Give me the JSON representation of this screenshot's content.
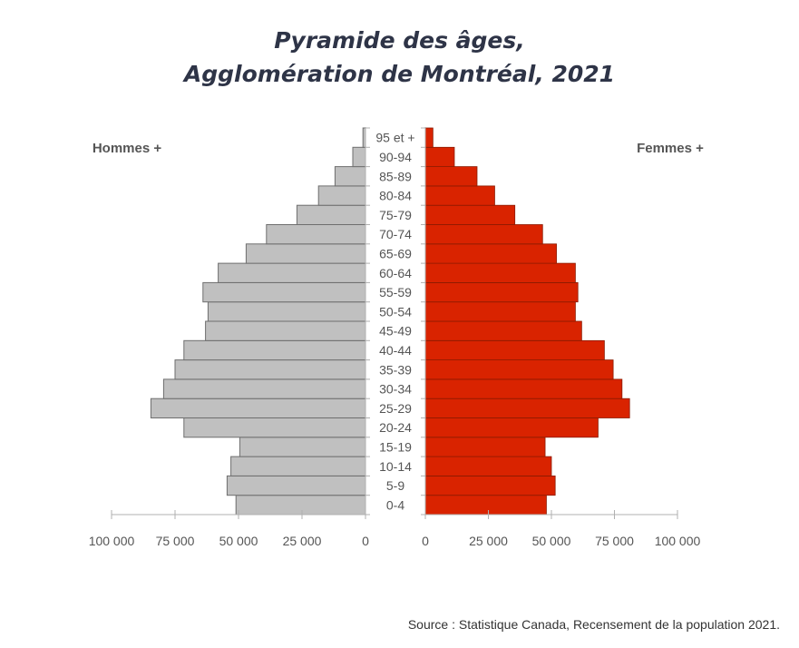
{
  "title": {
    "line1": "Pyramide des âges,",
    "line2": "Agglomération de Montréal, 2021"
  },
  "source": "Source : Statistique Canada, Recensement de la population 2021.",
  "colors": {
    "men": "#c0c0c0",
    "men_stroke": "#6e6e6e",
    "women": "#d92300",
    "women_stroke": "#8a1a00",
    "axis": "#b0b0b0",
    "text": "#555555"
  },
  "chart_data": {
    "type": "bar",
    "orientation": "horizontal",
    "categories": [
      "0-4",
      "5-9",
      "10-14",
      "15-19",
      "20-24",
      "25-29",
      "30-34",
      "35-39",
      "40-44",
      "45-49",
      "50-54",
      "55-59",
      "60-64",
      "65-69",
      "70-74",
      "75-79",
      "80-84",
      "85-89",
      "90-94",
      "95 et +"
    ],
    "series": [
      {
        "name": "Hommes +",
        "side": "left",
        "values": [
          51000,
          54500,
          53000,
          49500,
          71500,
          84500,
          79500,
          75000,
          71500,
          63000,
          62000,
          64000,
          58000,
          47000,
          39000,
          27000,
          18500,
          12000,
          5000,
          1000
        ]
      },
      {
        "name": "Femmes +",
        "side": "right",
        "values": [
          48000,
          51500,
          50000,
          47500,
          68500,
          81000,
          78000,
          74500,
          71000,
          62000,
          59500,
          60500,
          59500,
          52000,
          46500,
          35500,
          27500,
          20500,
          11500,
          3000
        ]
      }
    ],
    "men_ticks": [
      "100 000",
      "75 000",
      "50 000",
      "25 000",
      "0"
    ],
    "women_ticks": [
      "0",
      "25 000",
      "50 000",
      "75 000",
      "100 000"
    ],
    "xlim": [
      0,
      100000
    ]
  }
}
